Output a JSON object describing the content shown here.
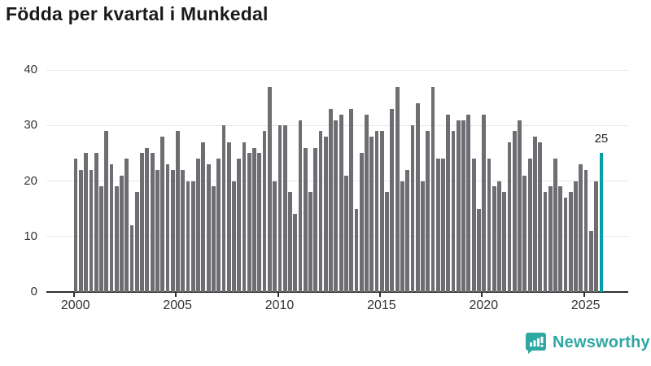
{
  "title": "Födda per kvartal i Munkedal",
  "colors": {
    "bar": "#6d6d72",
    "highlight": "#00a0a5",
    "grid": "#e7e7e7",
    "axis": "#2e2e2e",
    "text": "#333333",
    "logo": "#2fa7a2"
  },
  "branding": {
    "logo_text": "Newsworthy",
    "icon": "newsworthy-chart-bubble-icon"
  },
  "chart_data": {
    "type": "bar",
    "title": "Födda per kvartal i Munkedal",
    "x_unit": "quarter",
    "x_start": "2000 Q1",
    "x_end": "2025 Q4",
    "values": [
      24,
      22,
      25,
      22,
      25,
      19,
      29,
      23,
      19,
      21,
      24,
      12,
      18,
      25,
      26,
      25,
      22,
      28,
      23,
      22,
      29,
      22,
      20,
      20,
      24,
      27,
      23,
      19,
      24,
      30,
      27,
      20,
      24,
      27,
      25,
      26,
      25,
      29,
      37,
      20,
      30,
      30,
      18,
      14,
      31,
      26,
      18,
      26,
      29,
      28,
      33,
      31,
      32,
      21,
      33,
      15,
      25,
      32,
      28,
      29,
      29,
      18,
      33,
      37,
      20,
      22,
      30,
      34,
      20,
      29,
      37,
      24,
      24,
      32,
      29,
      31,
      31,
      32,
      24,
      15,
      32,
      24,
      19,
      20,
      18,
      27,
      29,
      31,
      21,
      24,
      28,
      27,
      18,
      19,
      24,
      19,
      17,
      18,
      20,
      23,
      22,
      11,
      20,
      25
    ],
    "highlight_index": 103,
    "highlight_quarter": "2025 Q4",
    "highlight_value_label": "25",
    "xtick_years": [
      2000,
      2005,
      2010,
      2015,
      2020,
      2025
    ],
    "xticklabels": [
      "2000",
      "2005",
      "2010",
      "2015",
      "2020",
      "2025"
    ],
    "yticks": [
      0,
      10,
      20,
      30,
      40
    ],
    "yticklabels": [
      "0",
      "10",
      "20",
      "30",
      "40"
    ],
    "ylim": [
      0,
      40
    ],
    "grid": "horizontal",
    "legend": "none"
  }
}
